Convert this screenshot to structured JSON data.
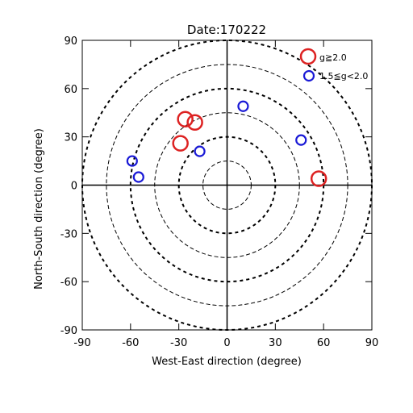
{
  "chart_data": {
    "type": "scatter",
    "title": "Date:170222",
    "xlabel": "West-East direction (degree)",
    "ylabel": "North-South direction (degree)",
    "xlim": [
      -90,
      90
    ],
    "ylim": [
      -90,
      90
    ],
    "xticks": [
      "-90",
      "-60",
      "-30",
      "0",
      "30",
      "60",
      "90"
    ],
    "yticks": [
      "-90",
      "-60",
      "-30",
      "0",
      "30",
      "60",
      "90"
    ],
    "rings": [
      15,
      30,
      45,
      60,
      75,
      90
    ],
    "series": [
      {
        "name": "g≧2.0",
        "color": "#dd2222",
        "size": "large",
        "x": [
          -26,
          -20,
          -29,
          57
        ],
        "y": [
          41,
          39,
          26,
          4
        ]
      },
      {
        "name": "1.5≦g<2.0",
        "color": "#1a1ad6",
        "size": "small",
        "x": [
          10,
          46,
          -17,
          -59,
          -55
        ],
        "y": [
          49,
          28,
          21,
          15,
          5
        ]
      }
    ],
    "legend": "top-right"
  }
}
